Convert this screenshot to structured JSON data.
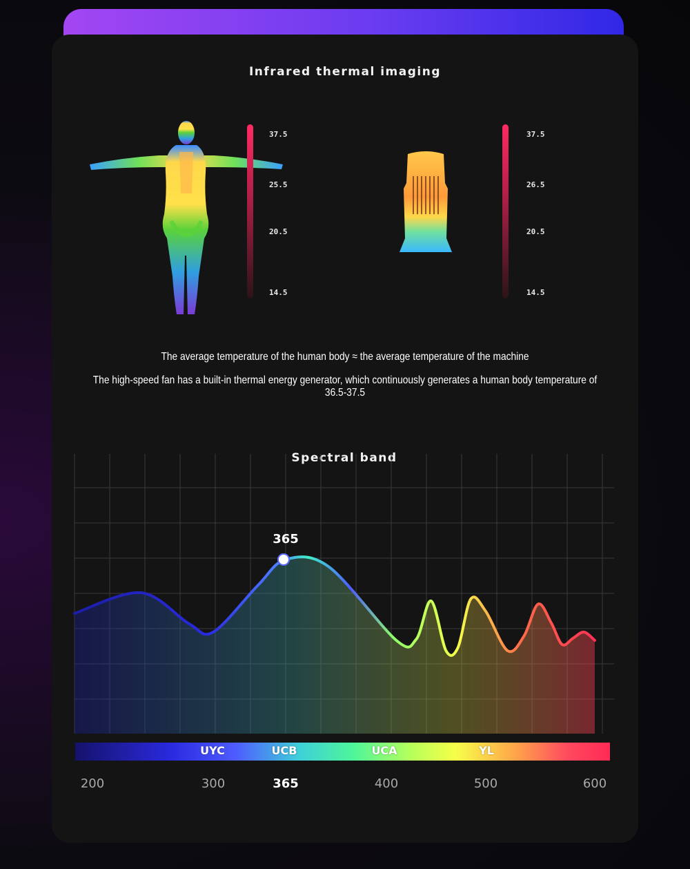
{
  "thermal": {
    "title": "Infrared thermal imaging",
    "human_scale": [
      "37.5",
      "25.5",
      "20.5",
      "14.5"
    ],
    "machine_scale": [
      "37.5",
      "26.5",
      "20.5",
      "14.5"
    ],
    "caption_line1": "The average temperature of the human body ≈ the average temperature of the machine",
    "caption_line2": "The high-speed fan has a built-in thermal energy generator, which continuously generates a human body temperature of 36.5-37.5"
  },
  "chart_data": {
    "type": "line",
    "title": "Spectral band",
    "x_ticks": [
      "200",
      "300",
      "365",
      "400",
      "500",
      "600"
    ],
    "x_tick_values": [
      200,
      300,
      365,
      400,
      500,
      600
    ],
    "xlim": [
      200,
      600
    ],
    "grid": true,
    "peak": {
      "x": 365,
      "label": "365"
    },
    "bands": [
      "UYC",
      "UCB",
      "UCA",
      "YL"
    ],
    "series": [
      {
        "x": [
          200,
          240,
          280,
          300,
          340,
          365,
          380,
          410,
          430,
          445,
          460,
          472,
          485,
          500,
          520,
          535,
          548,
          560,
          570,
          580,
          590,
          600
        ],
        "y": [
          0.48,
          0.68,
          0.38,
          0.3,
          0.75,
          1.0,
          0.93,
          0.22,
          0.23,
          0.6,
          0.12,
          0.15,
          0.62,
          0.5,
          0.12,
          0.26,
          0.57,
          0.39,
          0.18,
          0.24,
          0.3,
          0.22
        ]
      }
    ]
  },
  "colors": {
    "banner_start": "#a346f2",
    "banner_end": "#3028e6",
    "thermo_hot": "#ff2a62",
    "card_bg": "#141414"
  }
}
